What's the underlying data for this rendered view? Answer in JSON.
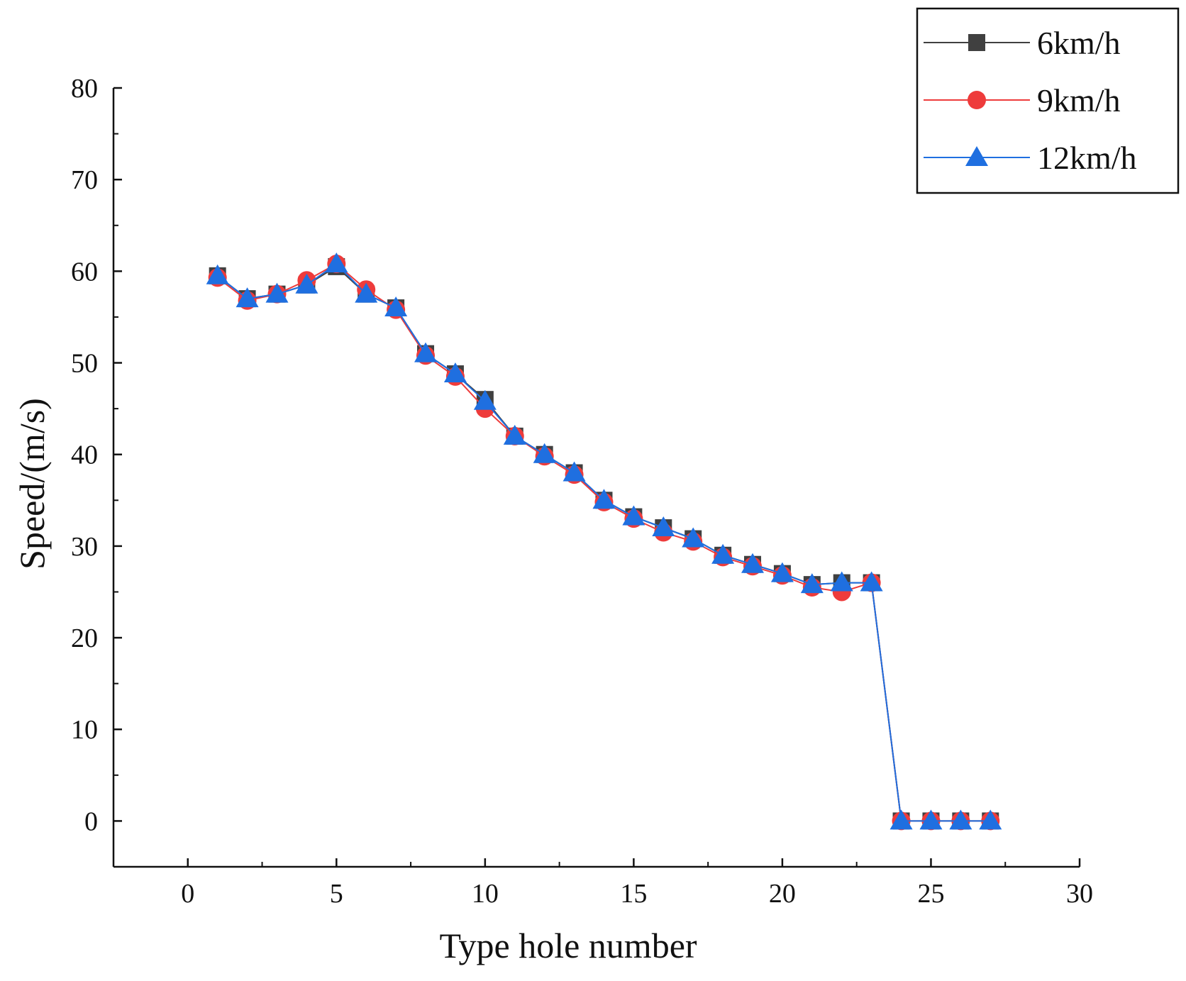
{
  "chart_data": {
    "type": "line",
    "title": "",
    "xlabel": "Type hole number",
    "ylabel": "Speed/(m/s)",
    "xlim": [
      -2.5,
      30
    ],
    "ylim": [
      -5,
      80
    ],
    "xticks": [
      0,
      5,
      10,
      15,
      20,
      25,
      30
    ],
    "yticks": [
      0,
      10,
      20,
      30,
      40,
      50,
      60,
      70,
      80
    ],
    "grid": false,
    "legend_position": "top-right",
    "x": [
      1,
      2,
      3,
      4,
      5,
      6,
      7,
      8,
      9,
      10,
      11,
      12,
      13,
      14,
      15,
      16,
      17,
      18,
      19,
      20,
      21,
      22,
      23,
      24,
      25,
      26,
      27
    ],
    "series": [
      {
        "name": "6km/h",
        "color": "#404040",
        "marker": "square",
        "values": [
          59.5,
          57,
          57.5,
          58.5,
          60.5,
          57.5,
          56,
          51,
          48.8,
          46,
          42,
          40,
          38,
          35,
          33.2,
          32,
          30.8,
          29,
          28,
          27,
          25.8,
          26,
          26,
          0,
          0,
          0,
          0
        ]
      },
      {
        "name": "9km/h",
        "color": "#ee3b3b",
        "marker": "circle",
        "values": [
          59.3,
          56.8,
          57.5,
          59,
          60.8,
          58,
          55.8,
          50.8,
          48.5,
          45,
          42,
          39.8,
          37.8,
          34.8,
          33,
          31.5,
          30.5,
          28.8,
          27.8,
          26.8,
          25.5,
          25,
          26,
          0,
          0,
          0,
          0
        ]
      },
      {
        "name": "12km/h",
        "color": "#1f6fe0",
        "marker": "triangle",
        "values": [
          59.5,
          57,
          57.5,
          58.5,
          60.8,
          57.5,
          56,
          51,
          48.8,
          45.8,
          42,
          40,
          38,
          35,
          33.2,
          32,
          30.8,
          29,
          28,
          27,
          25.8,
          26,
          26,
          0,
          0,
          0,
          0
        ]
      }
    ]
  }
}
